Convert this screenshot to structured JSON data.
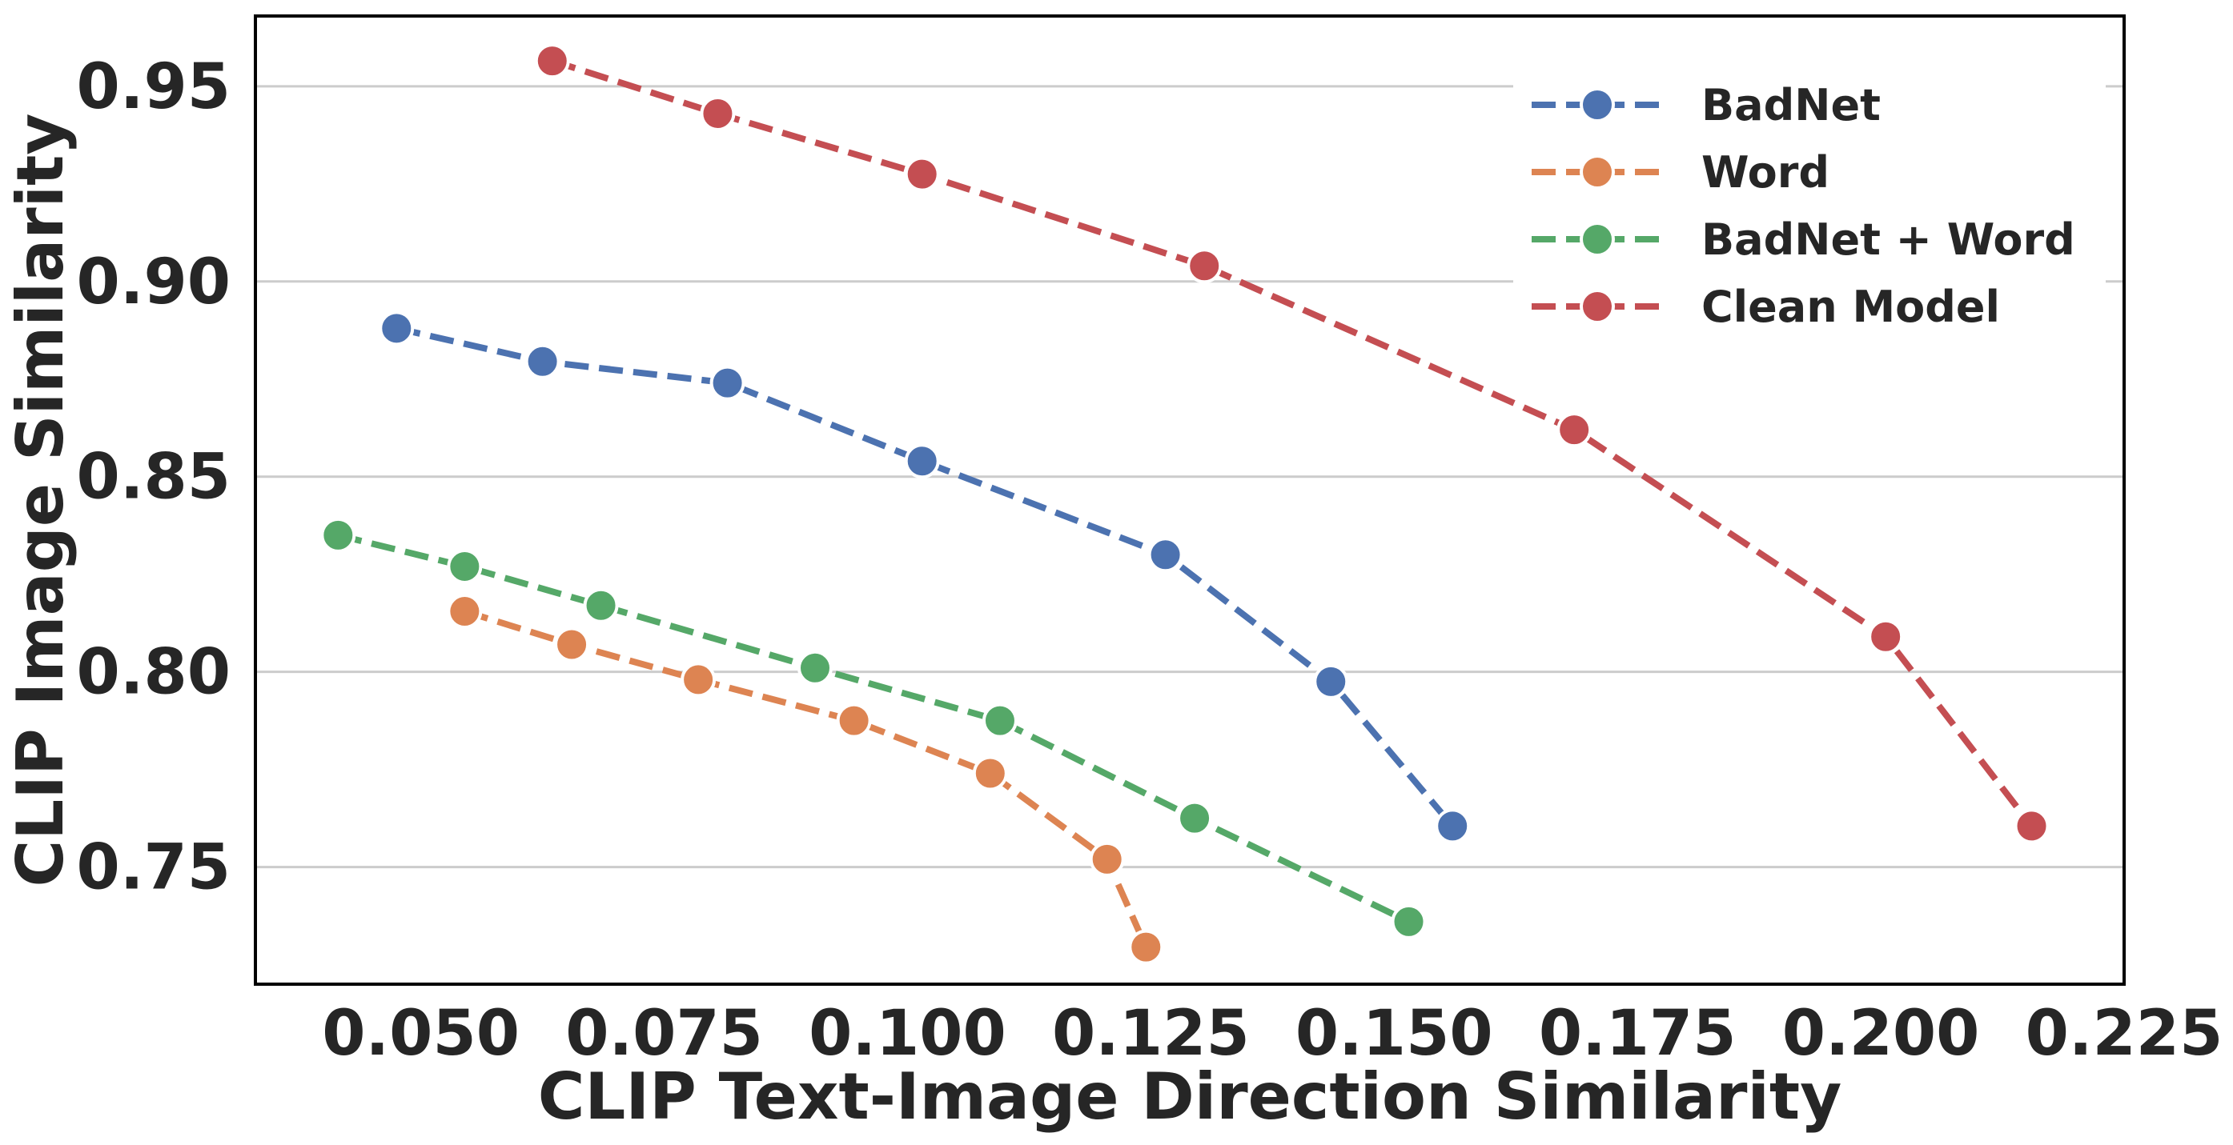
{
  "chart_data": {
    "type": "line",
    "title": "",
    "xlabel": "CLIP Text-Image Direction Similarity",
    "ylabel": "CLIP Image Similarity",
    "xlim": [
      0.033,
      0.225
    ],
    "ylim": [
      0.72,
      0.968
    ],
    "xticks": [
      0.05,
      0.075,
      0.1,
      0.125,
      0.15,
      0.175,
      0.2,
      0.225
    ],
    "xtick_labels": [
      "0.050",
      "0.075",
      "0.100",
      "0.125",
      "0.150",
      "0.175",
      "0.200",
      "0.225"
    ],
    "yticks": [
      0.75,
      0.8,
      0.85,
      0.9,
      0.95
    ],
    "ytick_labels": [
      "0.75",
      "0.80",
      "0.85",
      "0.90",
      "0.95"
    ],
    "grid": "horizontal",
    "legend_position": "top-right",
    "series": [
      {
        "name": "BadNet",
        "color": "#4c72b0",
        "x": [
          0.0475,
          0.0625,
          0.0815,
          0.1015,
          0.1265,
          0.1435,
          0.156
        ],
        "y": [
          0.888,
          0.8795,
          0.874,
          0.854,
          0.83,
          0.7975,
          0.7605
        ]
      },
      {
        "name": "Word",
        "color": "#dd8452",
        "x": [
          0.0545,
          0.0655,
          0.0785,
          0.0945,
          0.1085,
          0.1205,
          0.1245
        ],
        "y": [
          0.8155,
          0.807,
          0.798,
          0.7875,
          0.774,
          0.752,
          0.7295
        ]
      },
      {
        "name": "BadNet + Word",
        "color": "#55a868",
        "x": [
          0.0415,
          0.0545,
          0.0685,
          0.0905,
          0.1095,
          0.1295,
          0.1515
        ],
        "y": [
          0.835,
          0.827,
          0.817,
          0.801,
          0.7875,
          0.7625,
          0.736
        ]
      },
      {
        "name": "Clean Model",
        "color": "#c44e52",
        "x": [
          0.0635,
          0.0805,
          0.1015,
          0.1305,
          0.1685,
          0.2005,
          0.2155
        ],
        "y": [
          0.9565,
          0.943,
          0.9275,
          0.904,
          0.862,
          0.809,
          0.7605
        ]
      }
    ]
  }
}
